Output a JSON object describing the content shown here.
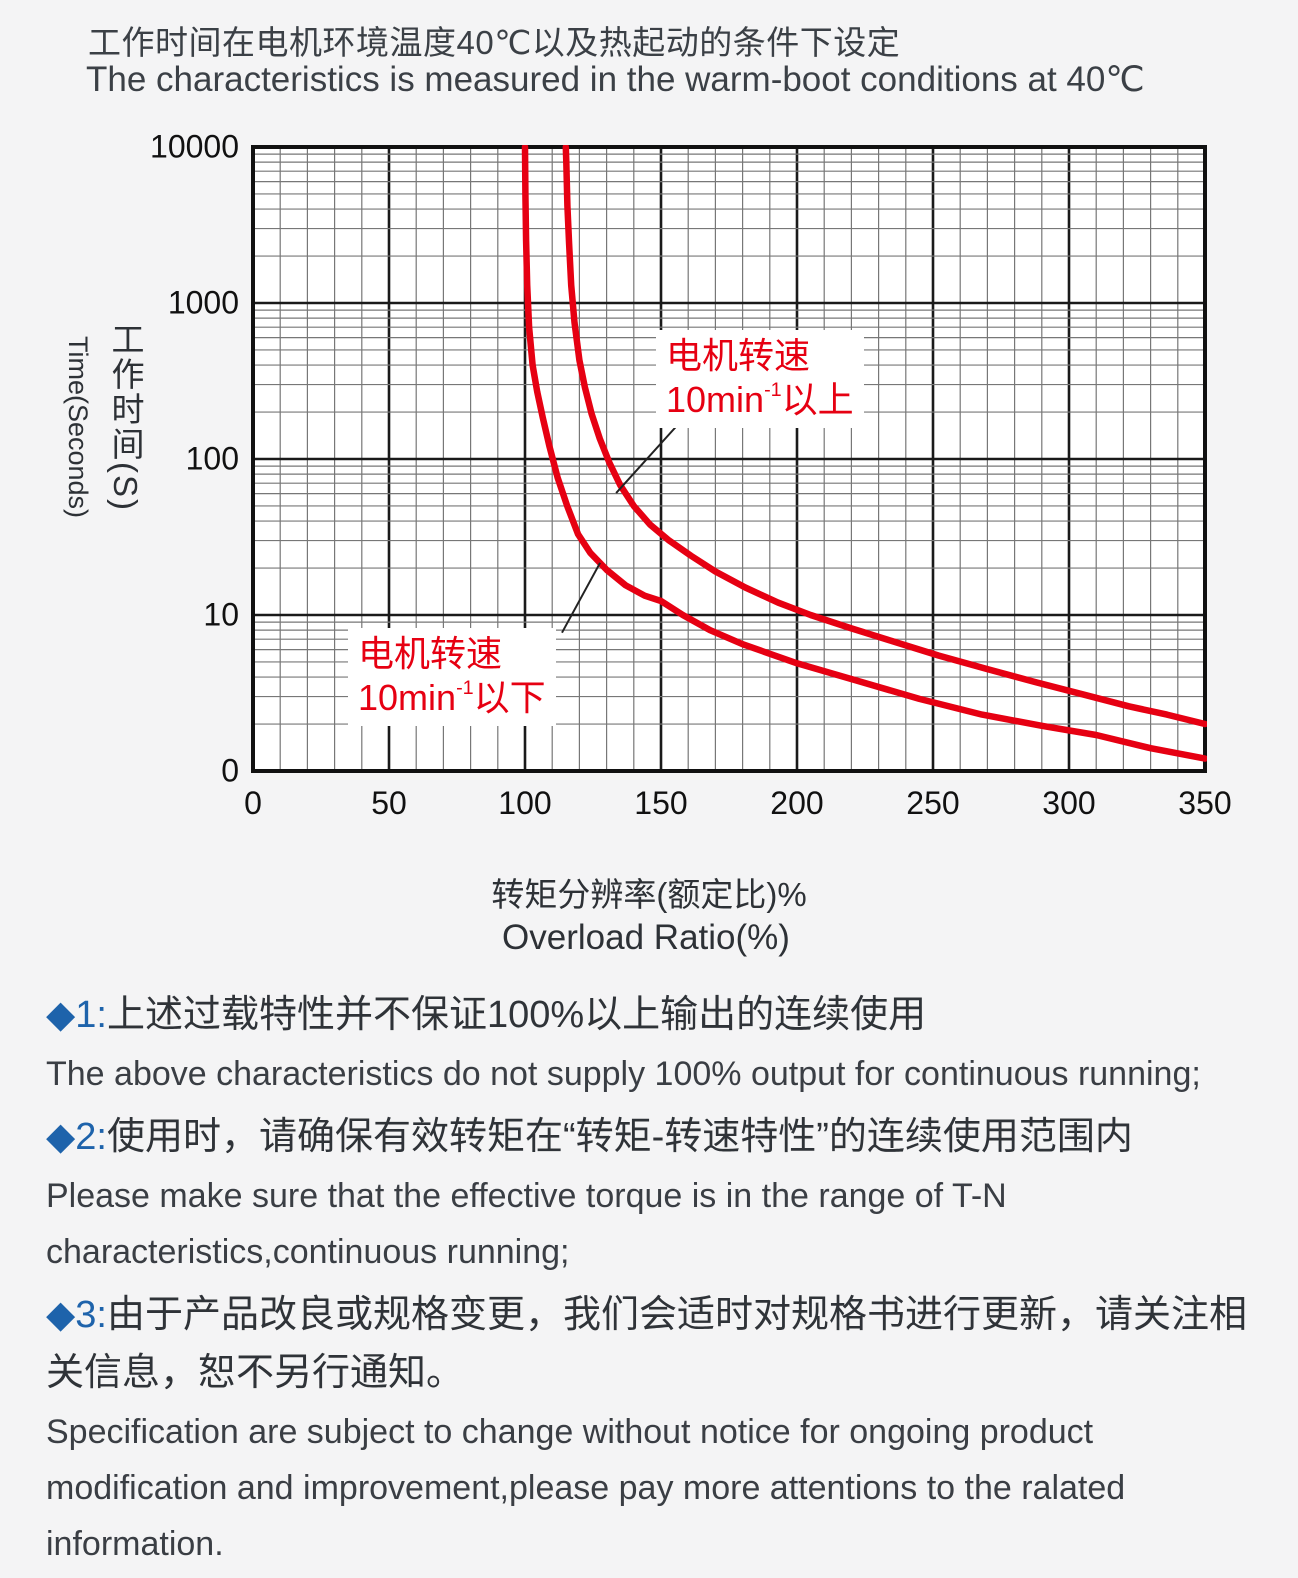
{
  "header": {
    "title_zh": "工作时间在电机环境温度40℃以及热起动的条件下设定",
    "title_en": "The characteristics is measured in the warm-boot conditions at 40℃"
  },
  "chart_data": {
    "type": "line",
    "xlabel_zh": "转矩分辨率(额定比)%",
    "xlabel_en": "Overload Ratio(%)",
    "ylabel_zh": "工作时间",
    "ylabel_unit": "(S)",
    "ylabel_en": "Time(Seconds)",
    "xlim": [
      0,
      350
    ],
    "x_ticks": [
      0,
      50,
      100,
      150,
      200,
      250,
      300,
      350
    ],
    "x_minor_step": 10,
    "y_scale": "log",
    "ylim": [
      1,
      10000
    ],
    "y_tick_labels": [
      "10000",
      "1000",
      "100",
      "10",
      "0"
    ],
    "grid": true,
    "line_color": "#e60012",
    "series": [
      {
        "name": "电机转速10min-1以下 (motor speed below 10min-1)",
        "points": [
          [
            100,
            10000
          ],
          [
            100.15,
            5000
          ],
          [
            100.4,
            2500
          ],
          [
            100.8,
            1300
          ],
          [
            101.5,
            700
          ],
          [
            102.8,
            400
          ],
          [
            104.5,
            270
          ],
          [
            106.5,
            185
          ],
          [
            109,
            120
          ],
          [
            112,
            76
          ],
          [
            115.5,
            50
          ],
          [
            119.5,
            33
          ],
          [
            124,
            25
          ],
          [
            130,
            19.5
          ],
          [
            137,
            15.5
          ],
          [
            144,
            13.3
          ],
          [
            150,
            12.3
          ],
          [
            158,
            10
          ],
          [
            168,
            8
          ],
          [
            180,
            6.5
          ],
          [
            200,
            4.9
          ],
          [
            222,
            3.8
          ],
          [
            245,
            2.9
          ],
          [
            268,
            2.3
          ],
          [
            290,
            1.95
          ],
          [
            310,
            1.7
          ],
          [
            330,
            1.4
          ],
          [
            350,
            1.2
          ]
        ]
      },
      {
        "name": "电机转速10min-1以上 (motor speed above 10min-1)",
        "points": [
          [
            115,
            10000
          ],
          [
            115.2,
            8000
          ],
          [
            115.6,
            4200
          ],
          [
            116.2,
            2400
          ],
          [
            117,
            1300
          ],
          [
            118.2,
            750
          ],
          [
            120,
            430
          ],
          [
            122,
            290
          ],
          [
            124.5,
            195
          ],
          [
            127.5,
            135
          ],
          [
            131,
            95
          ],
          [
            135,
            68
          ],
          [
            140,
            50
          ],
          [
            146,
            38
          ],
          [
            153,
            30
          ],
          [
            161,
            24
          ],
          [
            170,
            19
          ],
          [
            181,
            15
          ],
          [
            193,
            12
          ],
          [
            205,
            10
          ],
          [
            220,
            8.2
          ],
          [
            235,
            6.8
          ],
          [
            252,
            5.5
          ],
          [
            270,
            4.5
          ],
          [
            288,
            3.7
          ],
          [
            305,
            3.1
          ],
          [
            322,
            2.6
          ],
          [
            336,
            2.3
          ],
          [
            350,
            2.0
          ]
        ]
      }
    ],
    "annotations": [
      {
        "id": "above",
        "line1": "电机转速",
        "rate_base": "10min",
        "rate_sup": "-1",
        "rate_tail": "以上",
        "connector": {
          "from_x": 157,
          "from_t": 172,
          "to_x": 133.5,
          "to_t": 60.5
        }
      },
      {
        "id": "below",
        "line1": "电机转速",
        "rate_base": "10min",
        "rate_sup": "-1",
        "rate_tail": "以下",
        "connector": {
          "from_x": 113.6,
          "from_t": 7.7,
          "to_x": 127.6,
          "to_t": 21.6
        }
      }
    ],
    "legend_position": "none"
  },
  "notes": [
    {
      "bullet": "◆",
      "num": "1:",
      "zh": "上述过载特性并不保证100%以上输出的连续使用",
      "en": "The above characteristics do not supply 100% output for continuous running;"
    },
    {
      "bullet": "◆",
      "num": "2:",
      "zh": "使用时，请确保有效转矩在“转矩-转速特性”的连续使用范围内",
      "en": "Please make sure that the effective torque is in the range of T-N characteristics,continuous running;"
    },
    {
      "bullet": "◆",
      "num": "3:",
      "zh": "由于产品改良或规格变更，我们会适时对规格书进行更新，请关注相关信息，恕不另行通知。",
      "en": "Specification are subject to change without notice for ongoing product modification and improvement,please pay more attentions to the ralated information."
    }
  ],
  "colors": {
    "curve_red": "#e60012",
    "bullet_blue": "#1e63ab",
    "grid_major": "#1a1a1a",
    "grid_minor": "#777777",
    "plot_bg": "#ffffff",
    "page_bg": "#f4f4f5"
  }
}
